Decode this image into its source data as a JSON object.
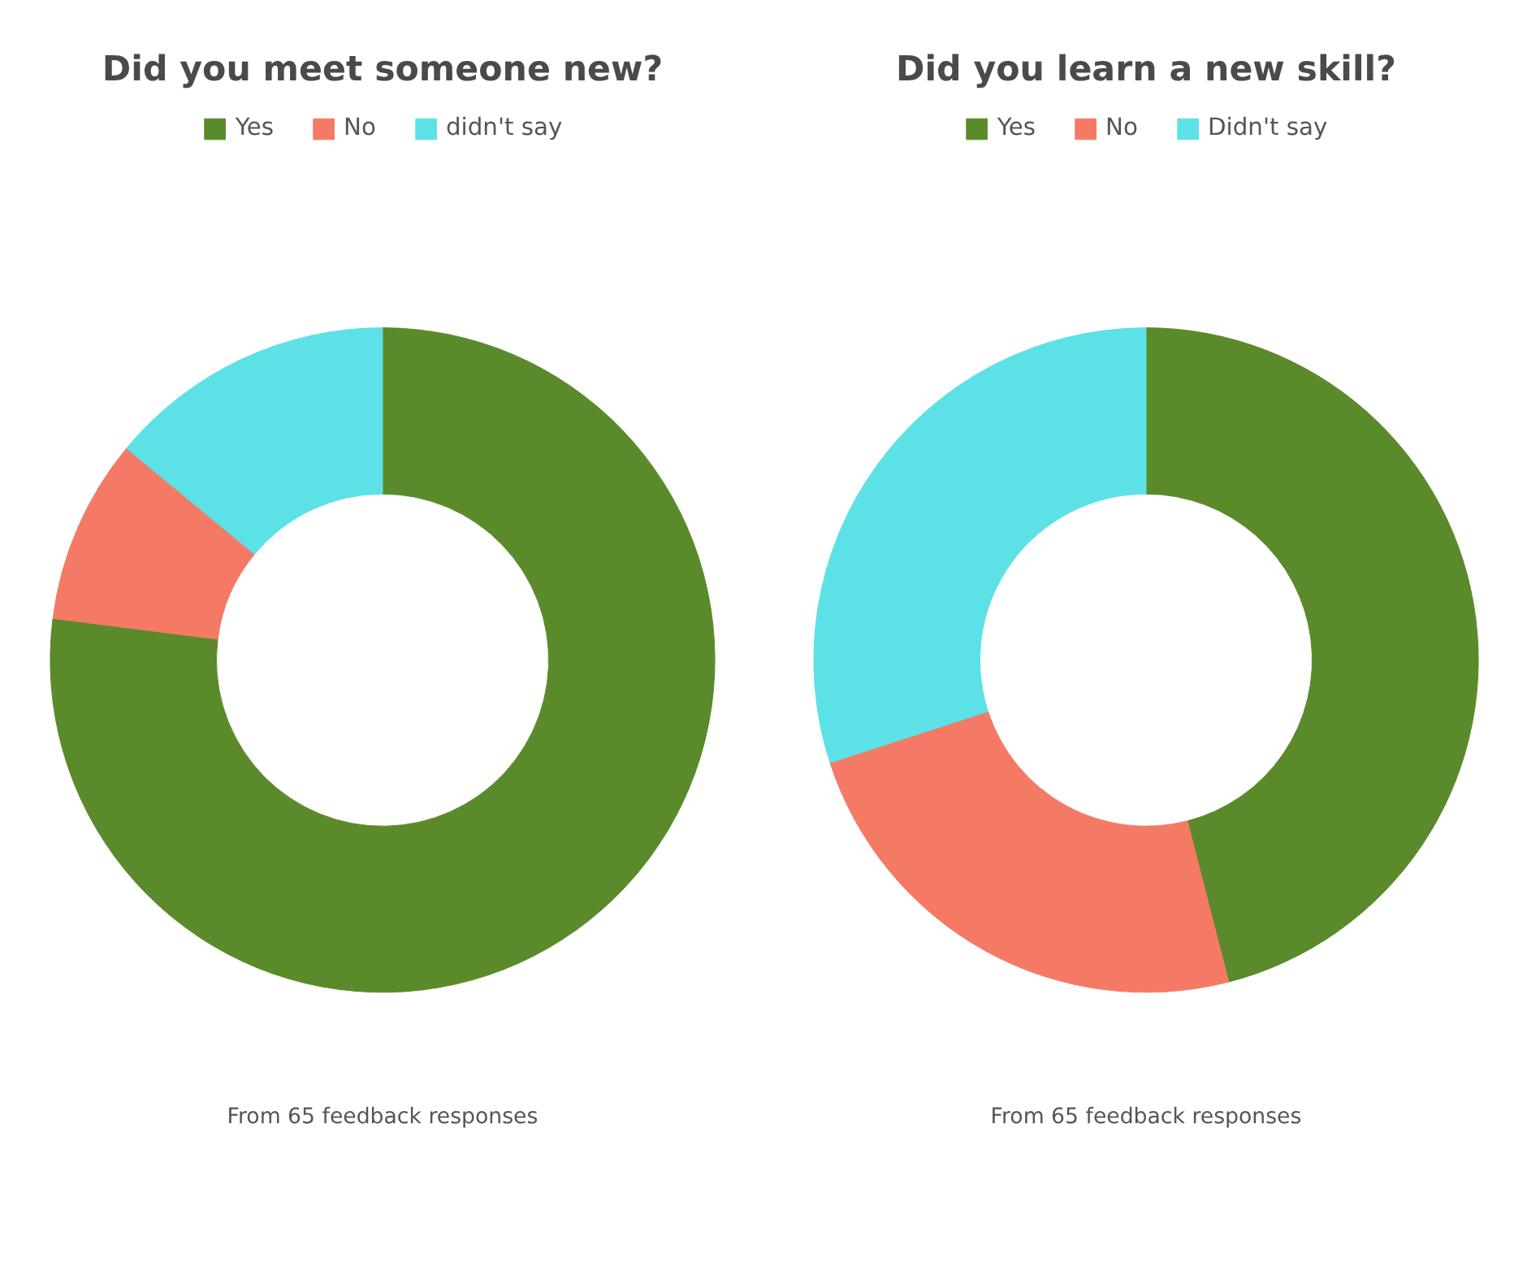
{
  "chart_data": [
    {
      "type": "donut",
      "title": "Did you meet someone new?",
      "categories": [
        "Yes",
        "No",
        "didn't say"
      ],
      "values": [
        77,
        9,
        14
      ],
      "colors": [
        "#5a8a2a",
        "#f47a66",
        "#5ce1e6"
      ],
      "legend": "top",
      "annotations": [
        "From 65 feedback responses"
      ]
    },
    {
      "type": "donut",
      "title": "Did you learn a new skill?",
      "categories": [
        "Yes",
        "No",
        "Didn't say"
      ],
      "values": [
        46,
        24,
        30
      ],
      "colors": [
        "#5a8a2a",
        "#f47a66",
        "#5ce1e6"
      ],
      "legend": "top",
      "annotations": [
        "From 65 feedback responses"
      ]
    }
  ]
}
